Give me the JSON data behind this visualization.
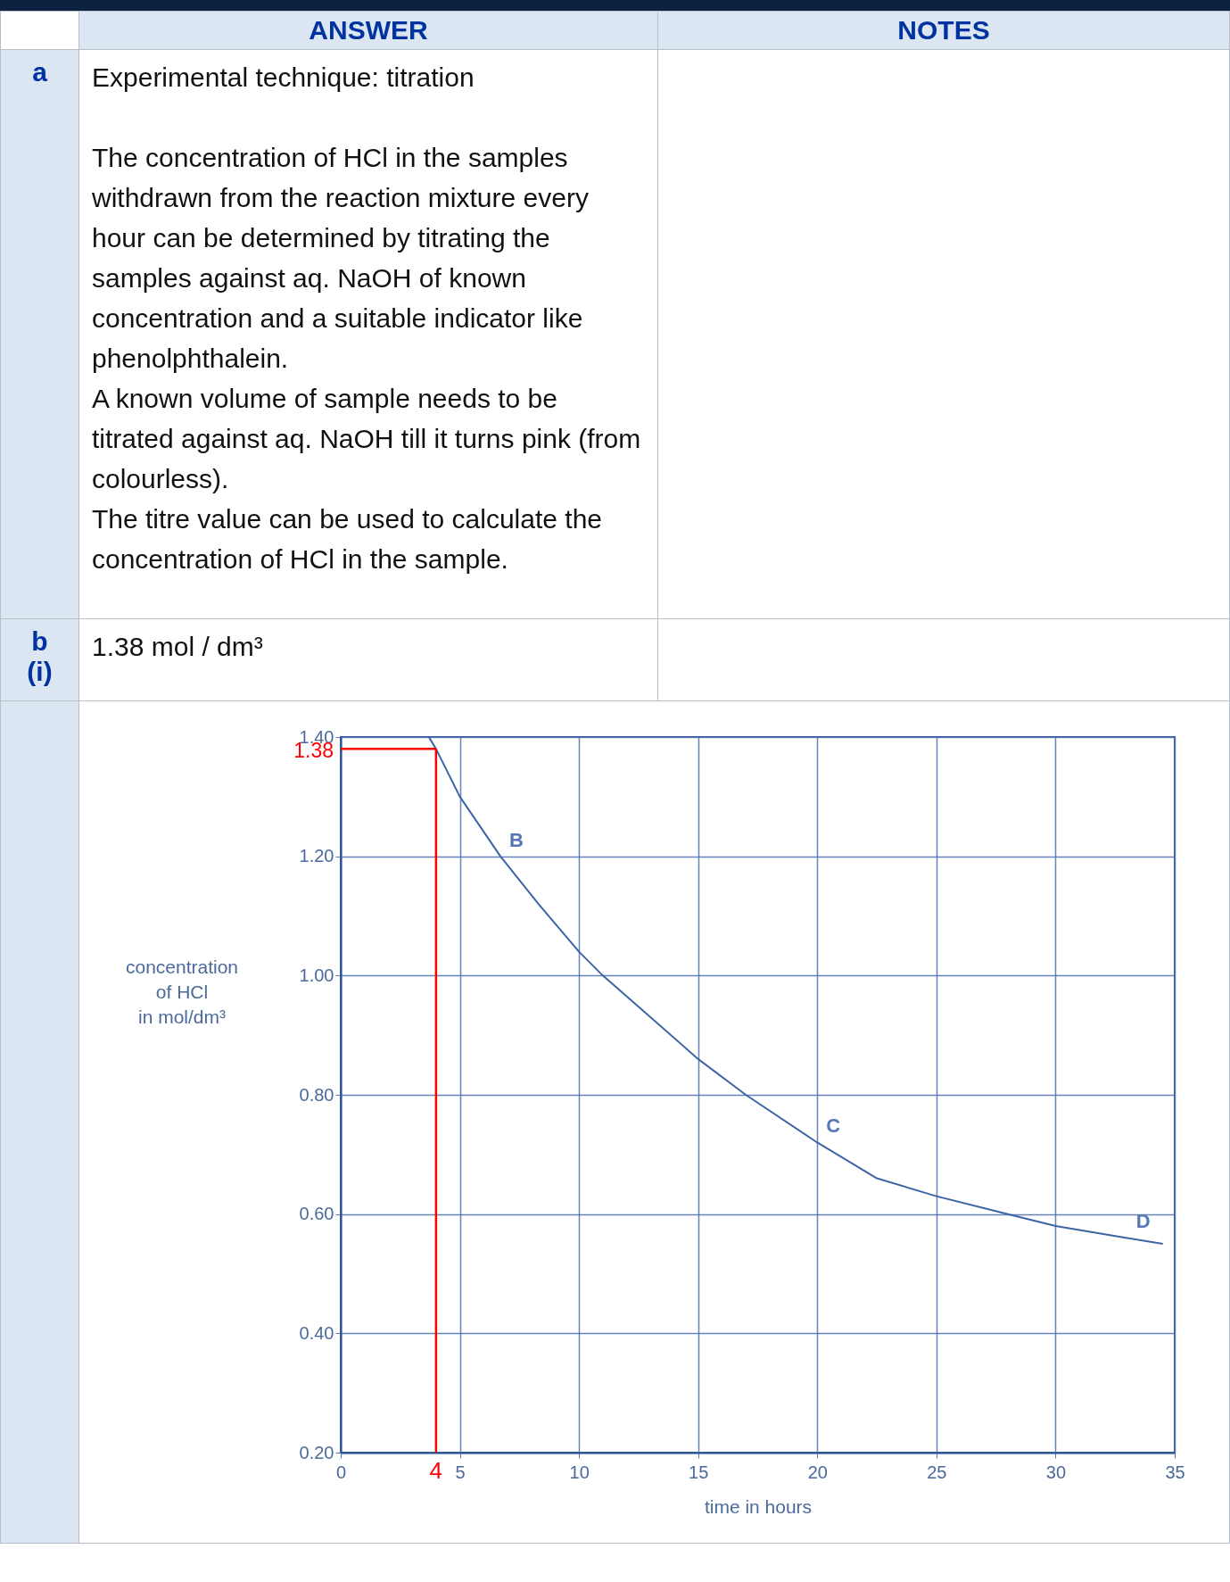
{
  "chart_data": {
    "type": "line",
    "xlabel": "time in hours",
    "ylabel": "concentration of HCl in mol/dm³",
    "annotations": [
      "ANSWER",
      "NOTES",
      "a",
      "Experimental technique: titration",
      "The concentration of HCl in the samples withdrawn from the reaction mixture every hour can be determined by titrating the samples against aq. NaOH of known concentration and a suitable indicator like phenolphthalein.",
      "A known volume of sample needs to be titrated against aq. NaOH till it turns pink (from colourless).",
      "The titre value can be used to calculate the concentration of HCl in the sample.",
      "b",
      "(i)",
      "1.38 mol / dm³",
      {
        "text": "B",
        "x": 6.7,
        "y": 1.2
      },
      {
        "text": "C",
        "x": 20,
        "y": 0.72
      },
      {
        "text": "D",
        "x": 33,
        "y": 0.56
      }
    ],
    "series": [
      {
        "color": "#3d64a4",
        "x": [
          3.7,
          4,
          5,
          6.7,
          8.3,
          10,
          11,
          13,
          15,
          17,
          20,
          22.5,
          25,
          28,
          30,
          33,
          34.5
        ],
        "values": [
          1.4,
          1.38,
          1.3,
          1.2,
          1.12,
          1.04,
          1.0,
          0.93,
          0.86,
          0.8,
          0.72,
          0.66,
          0.63,
          0.6,
          0.58,
          0.56,
          0.55
        ]
      }
    ],
    "xlim": [
      0,
      35
    ],
    "xticks": [
      0,
      5,
      10,
      15,
      20,
      25,
      30,
      35
    ],
    "ylim": [
      0.2,
      1.4
    ],
    "yticks": [
      {
        "value": 0.2,
        "label": "0.20"
      },
      {
        "value": 0.4,
        "label": "0.40"
      },
      {
        "value": 0.6,
        "label": "0.60"
      },
      {
        "value": 0.8,
        "label": "0.80"
      },
      {
        "value": 1.0,
        "label": "1.00"
      },
      {
        "value": 1.2,
        "label": "1.20"
      },
      {
        "value": 1.4,
        "label": "1.40"
      }
    ],
    "ref_lines": [
      {
        "axis": "x",
        "value": 4,
        "label": "4",
        "color": "#ff0000"
      },
      {
        "axis": "y",
        "value": 1.38,
        "label": "1.38",
        "color": "#ff0000"
      }
    ],
    "grid": true,
    "marker": "none",
    "line_style": "solid"
  }
}
